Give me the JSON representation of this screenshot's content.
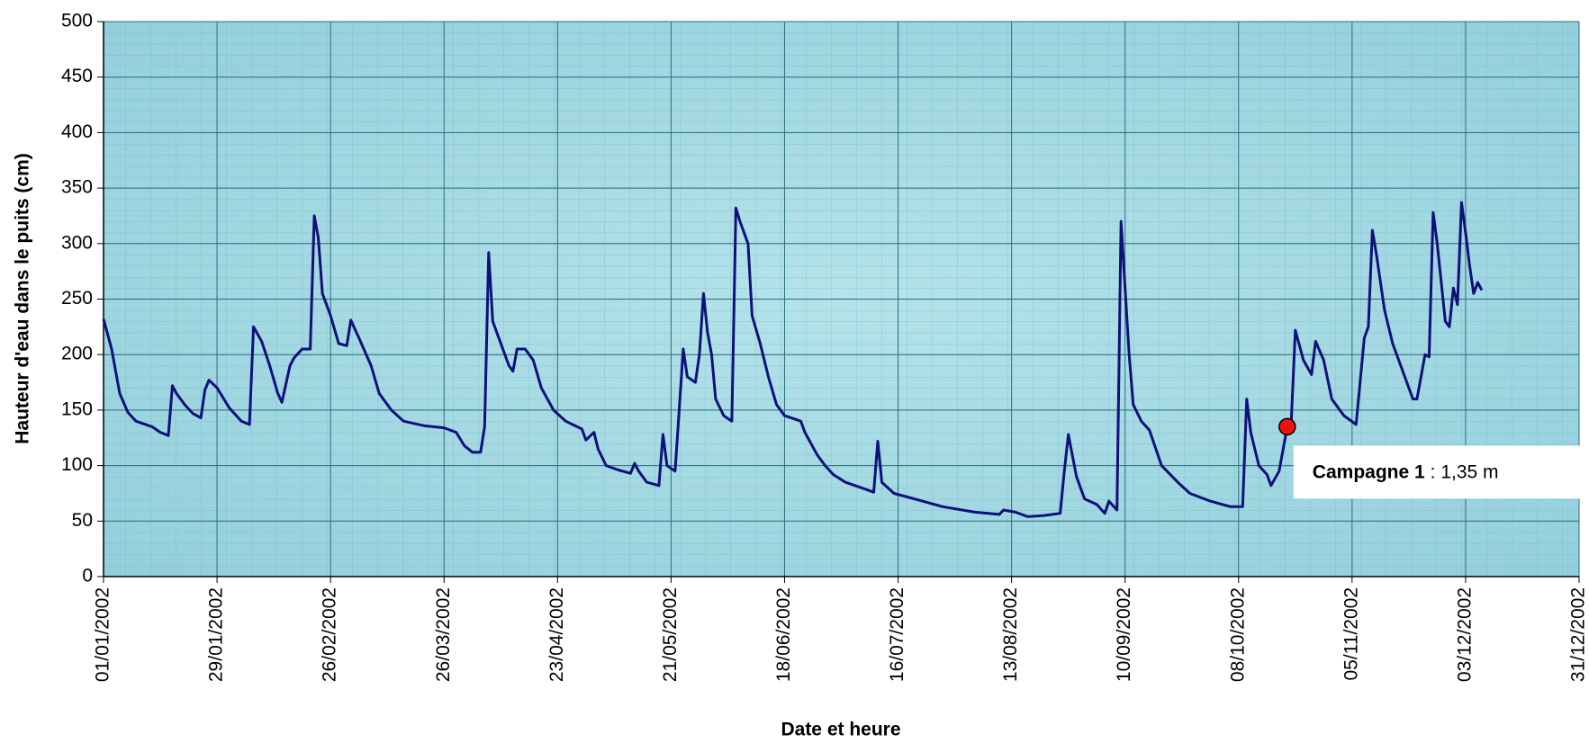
{
  "chart_data": {
    "type": "line",
    "y_label": "Hauteur d'eau dans le puits (cm)",
    "x_label": "Date et heure",
    "color": "#10107a",
    "grid": true,
    "xlim": [
      "01/01/2002",
      "31/12/2002"
    ],
    "xticks": [
      "01/01/2002",
      "29/01/2002",
      "26/02/2002",
      "26/03/2002",
      "23/04/2002",
      "21/05/2002",
      "18/06/2002",
      "16/07/2002",
      "13/08/2002",
      "10/09/2002",
      "08/10/2002",
      "05/11/2002",
      "03/12/2002",
      "31/12/2002"
    ],
    "ylim": [
      0,
      500
    ],
    "yticks": [
      0,
      50,
      100,
      150,
      200,
      250,
      300,
      350,
      400,
      450,
      500
    ],
    "x": [
      "01/01/2002",
      "03/01/2002",
      "05/01/2002",
      "07/01/2002",
      "09/01/2002",
      "13/01/2002",
      "15/01/2002",
      "17/01/2002",
      "18/01/2002",
      "19/01/2002",
      "21/01/2002",
      "23/01/2002",
      "25/01/2002",
      "26/01/2002",
      "27/01/2002",
      "29/01/2002",
      "01/02/2002",
      "04/02/2002",
      "06/02/2002",
      "07/02/2002",
      "09/02/2002",
      "11/02/2002",
      "13/02/2002",
      "14/02/2002",
      "16/02/2002",
      "17/02/2002",
      "19/02/2002",
      "21/02/2002",
      "22/02/2002",
      "23/02/2002",
      "24/02/2002",
      "26/02/2002",
      "28/02/2002",
      "02/03/2002",
      "03/03/2002",
      "05/03/2002",
      "08/03/2002",
      "10/03/2002",
      "13/03/2002",
      "16/03/2002",
      "21/03/2002",
      "26/03/2002",
      "29/03/2002",
      "31/03/2002",
      "02/04/2002",
      "04/04/2002",
      "05/04/2002",
      "06/04/2002",
      "07/04/2002",
      "09/04/2002",
      "11/04/2002",
      "12/04/2002",
      "13/04/2002",
      "15/04/2002",
      "17/04/2002",
      "19/04/2002",
      "22/04/2002",
      "25/04/2002",
      "29/04/2002",
      "30/04/2002",
      "02/05/2002",
      "03/05/2002",
      "05/05/2002",
      "08/05/2002",
      "11/05/2002",
      "12/05/2002",
      "13/05/2002",
      "15/05/2002",
      "18/05/2002",
      "19/05/2002",
      "20/05/2002",
      "22/05/2002",
      "24/05/2002",
      "25/05/2002",
      "27/05/2002",
      "28/05/2002",
      "29/05/2002",
      "30/05/2002",
      "31/05/2002",
      "01/06/2002",
      "03/06/2002",
      "05/06/2002",
      "06/06/2002",
      "07/06/2002",
      "09/06/2002",
      "10/06/2002",
      "12/06/2002",
      "14/06/2002",
      "16/06/2002",
      "18/06/2002",
      "22/06/2002",
      "23/06/2002",
      "26/06/2002",
      "28/06/2002",
      "30/06/2002",
      "03/07/2002",
      "07/07/2002",
      "10/07/2002",
      "11/07/2002",
      "12/07/2002",
      "15/07/2002",
      "20/07/2002",
      "27/07/2002",
      "04/08/2002",
      "10/08/2002",
      "11/08/2002",
      "14/08/2002",
      "17/08/2002",
      "21/08/2002",
      "25/08/2002",
      "26/08/2002",
      "27/08/2002",
      "29/08/2002",
      "31/08/2002",
      "03/09/2002",
      "05/09/2002",
      "06/09/2002",
      "08/09/2002",
      "09/09/2002",
      "11/09/2002",
      "12/09/2002",
      "14/09/2002",
      "16/09/2002",
      "19/09/2002",
      "23/09/2002",
      "26/09/2002",
      "01/10/2002",
      "06/10/2002",
      "09/10/2002",
      "10/10/2002",
      "11/10/2002",
      "13/10/2002",
      "15/10/2002",
      "16/10/2002",
      "18/10/2002",
      "20/10/2002",
      "21/10/2002",
      "22/10/2002",
      "24/10/2002",
      "26/10/2002",
      "27/10/2002",
      "29/10/2002",
      "31/10/2002",
      "03/11/2002",
      "06/11/2002",
      "08/11/2002",
      "09/11/2002",
      "10/11/2002",
      "11/11/2002",
      "13/11/2002",
      "15/11/2002",
      "18/11/2002",
      "20/11/2002",
      "21/11/2002",
      "23/11/2002",
      "24/11/2002",
      "25/11/2002",
      "26/11/2002",
      "28/11/2002",
      "29/11/2002",
      "30/11/2002",
      "01/12/2002",
      "02/12/2002",
      "03/12/2002",
      "04/12/2002",
      "05/12/2002",
      "06/12/2002",
      "07/12/2002"
    ],
    "values": [
      232,
      205,
      165,
      148,
      140,
      135,
      130,
      127,
      172,
      165,
      155,
      147,
      143,
      168,
      177,
      170,
      152,
      140,
      137,
      225,
      212,
      190,
      165,
      157,
      190,
      197,
      205,
      205,
      325,
      305,
      255,
      235,
      210,
      208,
      231,
      215,
      190,
      165,
      150,
      140,
      136,
      134,
      130,
      118,
      112,
      112,
      135,
      292,
      230,
      210,
      190,
      185,
      205,
      205,
      195,
      170,
      150,
      140,
      133,
      123,
      130,
      115,
      100,
      96,
      93,
      102,
      95,
      85,
      82,
      128,
      100,
      95,
      205,
      180,
      175,
      200,
      255,
      220,
      200,
      160,
      145,
      140,
      332,
      320,
      300,
      235,
      210,
      180,
      155,
      145,
      140,
      130,
      110,
      100,
      92,
      85,
      80,
      76,
      122,
      85,
      75,
      70,
      63,
      58,
      56,
      60,
      58,
      54,
      55,
      57,
      95,
      128,
      90,
      70,
      65,
      57,
      68,
      60,
      320,
      200,
      155,
      140,
      132,
      100,
      85,
      75,
      68,
      63,
      63,
      160,
      130,
      100,
      92,
      82,
      95,
      135,
      140,
      222,
      195,
      182,
      212,
      195,
      160,
      145,
      137,
      215,
      225,
      312,
      290,
      240,
      210,
      180,
      160,
      160,
      200,
      198,
      328,
      300,
      230,
      225,
      260,
      245,
      337,
      310,
      280,
      255,
      265,
      258
    ],
    "annotation": {
      "x": "20/10/2002",
      "y": 135,
      "label_bold": "Campagne 1",
      "label": ": 1,35 m",
      "color": "#ee1111"
    }
  }
}
